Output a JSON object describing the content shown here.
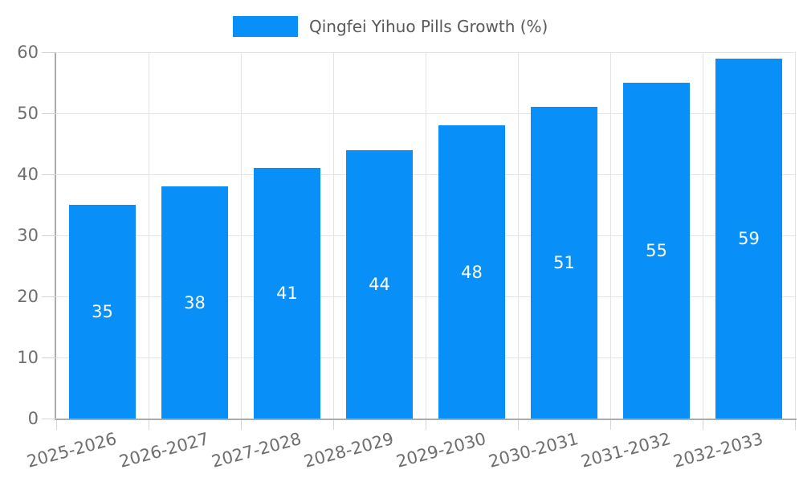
{
  "legend": {
    "label": "Qingfei Yihuo Pills Growth (%)",
    "swatch_color": "#0890f8"
  },
  "chart_data": {
    "type": "bar",
    "title": "",
    "series_name": "Qingfei Yihuo Pills Growth (%)",
    "categories": [
      "2025-2026",
      "2026-2027",
      "2027-2028",
      "2028-2029",
      "2029-2030",
      "2030-2031",
      "2031-2032",
      "2032-2033"
    ],
    "values": [
      35,
      38,
      41,
      44,
      48,
      51,
      55,
      59
    ],
    "xlabel": "",
    "ylabel": "",
    "ylim": [
      0,
      60
    ],
    "yticks": [
      0,
      10,
      20,
      30,
      40,
      50,
      60
    ],
    "grid": true,
    "legend_position": "top",
    "bar_color": "#0890f8",
    "value_label_color": "#ffffff"
  },
  "colors": {
    "grid": "#e4e4e4",
    "axis": "#ababab",
    "tick": "#d4d4d4",
    "axis_label": "#6e6e6e",
    "legend_text": "#595959",
    "background": "#ffffff"
  }
}
